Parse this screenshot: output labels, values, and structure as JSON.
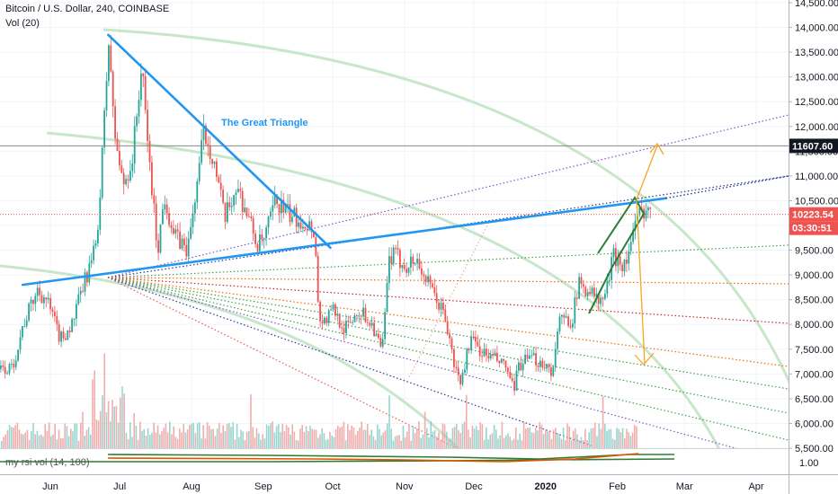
{
  "header": {
    "symbol_line": "Bitcoin / U.S. Dollar, 240, COINBASE",
    "volume_line": "Vol (20)",
    "rsi_line": "my rsi vol (14, 100)"
  },
  "annotations": {
    "triangle_label": "The Great Triangle"
  },
  "price_tags": {
    "target": "11607.60",
    "current": "10223.54",
    "countdown": "03:30:51"
  },
  "colors": {
    "candle_up": "#26a69a",
    "candle_down": "#ef5350",
    "triangle_line": "#2196f3",
    "channel_line": "#2e7d32",
    "projection_arrow": "#f5a623",
    "arc": "#c8e6c9",
    "price_tag_current": "#ef5350",
    "price_tag_target": "#131722"
  },
  "chart_data": {
    "type": "candlestick",
    "title": "Bitcoin / U.S. Dollar, 240, COINBASE",
    "y_axis": {
      "range": [
        5500,
        14500
      ],
      "ticks": [
        5500,
        6000,
        6500,
        7000,
        7500,
        8000,
        8500,
        9000,
        9500,
        10000,
        10500,
        11000,
        11500,
        12000,
        12500,
        13000,
        13500,
        14000,
        14500
      ]
    },
    "x_axis": {
      "ticks": [
        "Jun",
        "Jul",
        "Aug",
        "Sep",
        "Oct",
        "Nov",
        "Dec",
        "2020",
        "Feb",
        "Mar",
        "Apr"
      ]
    },
    "rsi_axis": {
      "ticks": [
        "1.00"
      ]
    },
    "price_path": [
      [
        "2019-05-15",
        7100
      ],
      [
        "2019-05-20",
        8000
      ],
      [
        "2019-05-26",
        8700
      ],
      [
        "2019-05-30",
        8500
      ],
      [
        "2019-06-05",
        7700
      ],
      [
        "2019-06-10",
        8000
      ],
      [
        "2019-06-15",
        8800
      ],
      [
        "2019-06-20",
        9500
      ],
      [
        "2019-06-22",
        10500
      ],
      [
        "2019-06-26",
        13850
      ],
      [
        "2019-06-28",
        12000
      ],
      [
        "2019-07-02",
        10800
      ],
      [
        "2019-07-06",
        11300
      ],
      [
        "2019-07-10",
        13200
      ],
      [
        "2019-07-14",
        11000
      ],
      [
        "2019-07-17",
        9500
      ],
      [
        "2019-07-20",
        10600
      ],
      [
        "2019-07-24",
        9800
      ],
      [
        "2019-07-30",
        9500
      ],
      [
        "2019-08-02",
        10500
      ],
      [
        "2019-08-06",
        11900
      ],
      [
        "2019-08-10",
        11400
      ],
      [
        "2019-08-15",
        10100
      ],
      [
        "2019-08-20",
        10800
      ],
      [
        "2019-08-25",
        10200
      ],
      [
        "2019-08-29",
        9600
      ],
      [
        "2019-09-01",
        9700
      ],
      [
        "2019-09-06",
        10500
      ],
      [
        "2019-09-12",
        10200
      ],
      [
        "2019-09-18",
        10100
      ],
      [
        "2019-09-23",
        9900
      ],
      [
        "2019-09-24",
        8500
      ],
      [
        "2019-09-26",
        8000
      ],
      [
        "2019-10-01",
        8300
      ],
      [
        "2019-10-06",
        7900
      ],
      [
        "2019-10-12",
        8300
      ],
      [
        "2019-10-18",
        8000
      ],
      [
        "2019-10-22",
        7400
      ],
      [
        "2019-10-25",
        9300
      ],
      [
        "2019-10-27",
        9400
      ],
      [
        "2019-11-01",
        9200
      ],
      [
        "2019-11-06",
        9300
      ],
      [
        "2019-11-12",
        8700
      ],
      [
        "2019-11-18",
        8200
      ],
      [
        "2019-11-22",
        7200
      ],
      [
        "2019-11-25",
        6800
      ],
      [
        "2019-11-29",
        7700
      ],
      [
        "2019-12-05",
        7400
      ],
      [
        "2019-12-10",
        7300
      ],
      [
        "2019-12-15",
        7100
      ],
      [
        "2019-12-18",
        6600
      ],
      [
        "2019-12-20",
        7200
      ],
      [
        "2019-12-26",
        7300
      ],
      [
        "2020-01-01",
        7200
      ],
      [
        "2020-01-03",
        7000
      ],
      [
        "2020-01-07",
        8100
      ],
      [
        "2020-01-12",
        8100
      ],
      [
        "2020-01-15",
        8800
      ],
      [
        "2020-01-20",
        8700
      ],
      [
        "2020-01-24",
        8400
      ],
      [
        "2020-01-27",
        8700
      ],
      [
        "2020-01-30",
        9400
      ],
      [
        "2020-02-04",
        9200
      ],
      [
        "2020-02-09",
        10100
      ],
      [
        "2020-02-13",
        10400
      ],
      [
        "2020-02-15",
        10200
      ]
    ],
    "drawings": {
      "triangle_upper_line": [
        [
          "2019-06-26",
          13850
        ],
        [
          "2019-09-30",
          9550
        ]
      ],
      "triangle_lower_line": [
        [
          "2019-05-20",
          8800
        ],
        [
          "2020-02-22",
          10550
        ]
      ],
      "target_level": 11607.6,
      "current_level": 10223.54
    }
  }
}
